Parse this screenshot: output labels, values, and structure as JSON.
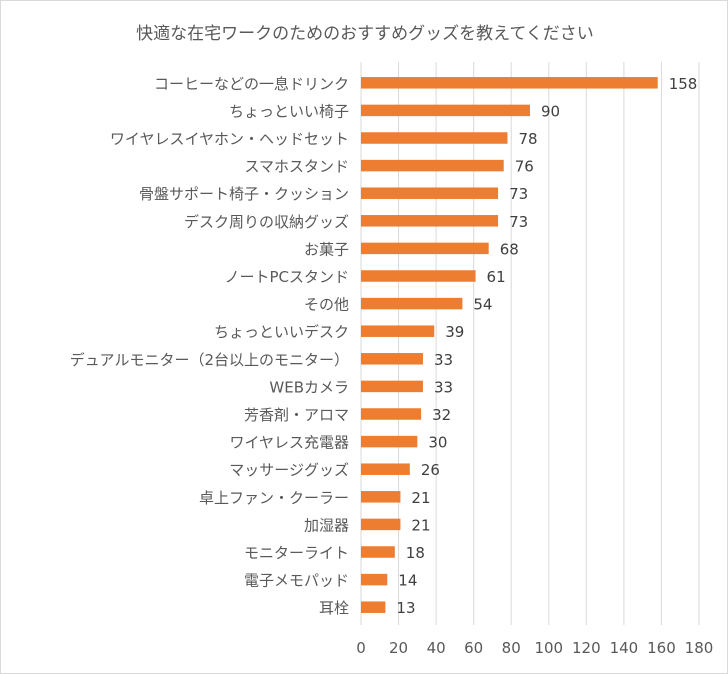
{
  "chart_data": {
    "type": "bar",
    "orientation": "horizontal",
    "title": "快適な在宅ワークのためのおすすめグッズを教えてください",
    "categories": [
      "コーヒーなどの一息ドリンク",
      "ちょっといい椅子",
      "ワイヤレスイヤホン・ヘッドセット",
      "スマホスタンド",
      "骨盤サポート椅子・クッション",
      "デスク周りの収納グッズ",
      "お菓子",
      "ノートPCスタンド",
      "その他",
      "ちょっといいデスク",
      "デュアルモニター（2台以上のモニター）",
      "WEBカメラ",
      "芳香剤・アロマ",
      "ワイヤレス充電器",
      "マッサージグッズ",
      "卓上ファン・クーラー",
      "加湿器",
      "モニターライト",
      "電子メモパッド",
      "耳栓"
    ],
    "values": [
      158,
      90,
      78,
      76,
      73,
      73,
      68,
      61,
      54,
      39,
      33,
      33,
      32,
      30,
      26,
      21,
      21,
      18,
      14,
      13
    ],
    "xlim": [
      0,
      180
    ],
    "xticks": [
      0,
      20,
      40,
      60,
      80,
      100,
      120,
      140,
      160,
      180
    ],
    "grid": "vertical",
    "data_labels": true,
    "legend": "none",
    "colors": {
      "bar": "#ED7D31",
      "grid": "#d9d9d9",
      "text": "#595959",
      "value_text": "#404040"
    }
  }
}
